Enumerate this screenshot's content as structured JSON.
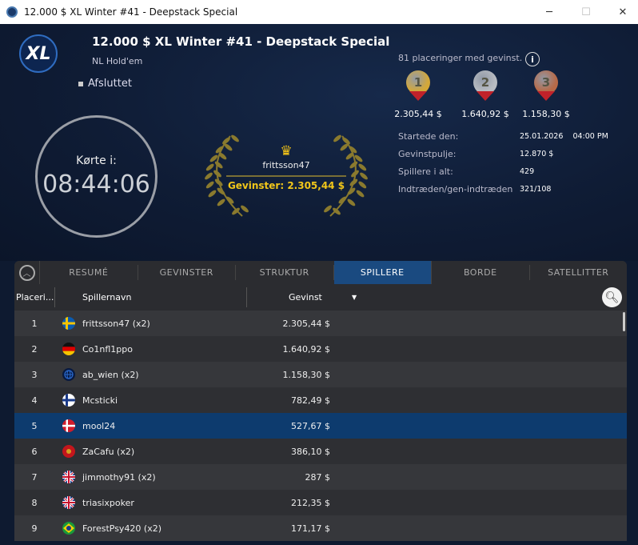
{
  "window": {
    "title": "12.000 $ XL Winter #41 - Deepstack Special"
  },
  "header": {
    "logo_text": "XL",
    "title": "12.000 $ XL Winter #41 - Deepstack Special",
    "game": "NL Hold'em",
    "status": "Afsluttet"
  },
  "clock": {
    "label": "Kørte i:",
    "value": "08:44:06"
  },
  "winner": {
    "name": "frittsson47",
    "prize": "Gevinster: 2.305,44 $"
  },
  "payouts": {
    "summary": "81 placeringer med gevinst.",
    "medals": [
      {
        "rank": "1",
        "amount": "2.305,44 $",
        "color": "#d4a838"
      },
      {
        "rank": "2",
        "amount": "1.640,92 $",
        "color": "#b8bcc2"
      },
      {
        "rank": "3",
        "amount": "1.158,30 $",
        "color": "#b86a48"
      }
    ]
  },
  "stats": [
    {
      "label": "Startede den:",
      "value": "25.01.2026    04:00 PM"
    },
    {
      "label": "Gevinstpulje:",
      "value": "12.870 $"
    },
    {
      "label": "Spillere i alt:",
      "value": "429"
    },
    {
      "label": "Indtræden/gen-indtræden",
      "value": "321/108"
    }
  ],
  "tabs": [
    {
      "label": "RESUMÉ"
    },
    {
      "label": "GEVINSTER"
    },
    {
      "label": "STRUKTUR"
    },
    {
      "label": "SPILLERE",
      "active": true
    },
    {
      "label": "BORDE"
    },
    {
      "label": "SATELLITTER"
    }
  ],
  "table": {
    "columns": {
      "position": "Placeri...",
      "name": "Spillernavn",
      "winnings": "Gevinst"
    },
    "rows": [
      {
        "pos": "1",
        "flag": "sweden",
        "name": "frittsson47 (x2)",
        "win": "2.305,44 $"
      },
      {
        "pos": "2",
        "flag": "germany",
        "name": "Co1nfl1ppo",
        "win": "1.640,92 $"
      },
      {
        "pos": "3",
        "flag": "globe",
        "name": "ab_wien (x2)",
        "win": "1.158,30 $"
      },
      {
        "pos": "4",
        "flag": "finland",
        "name": "Mcsticki",
        "win": "782,49 $"
      },
      {
        "pos": "5",
        "flag": "denmark",
        "name": "mool24",
        "win": "527,67 $",
        "selected": true
      },
      {
        "pos": "6",
        "flag": "montenegro",
        "name": "ZaCafu (x2)",
        "win": "386,10 $"
      },
      {
        "pos": "7",
        "flag": "uk",
        "name": "jimmothy91 (x2)",
        "win": "287 $"
      },
      {
        "pos": "8",
        "flag": "uk",
        "name": "triasixpoker",
        "win": "212,35 $"
      },
      {
        "pos": "9",
        "flag": "brazil",
        "name": "ForestPsy420 (x2)",
        "win": "171,17 $"
      }
    ]
  }
}
